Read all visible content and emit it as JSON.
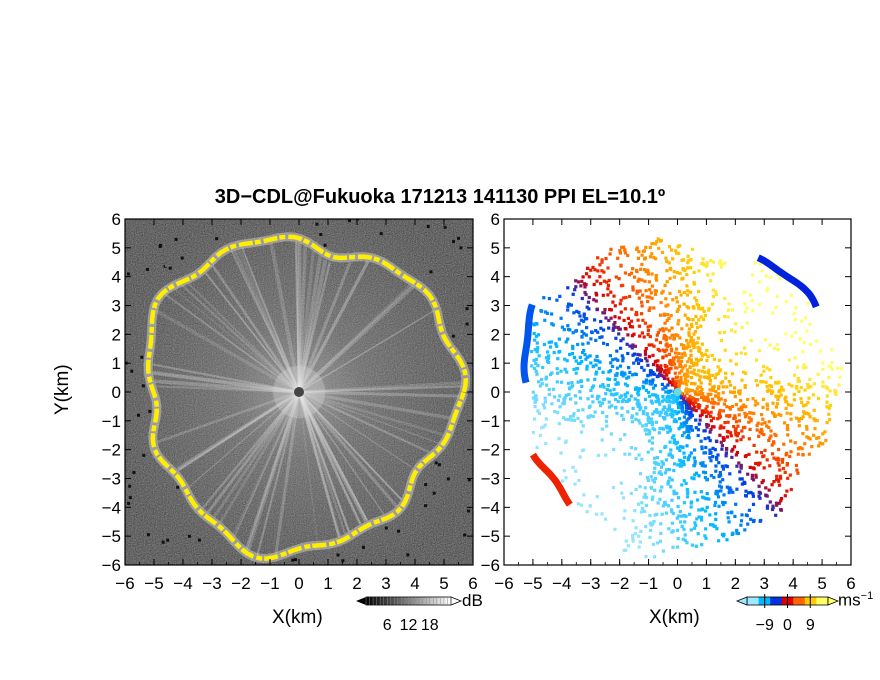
{
  "title": "3D−CDL@Fukuoka 171213 141130 PPI EL=10.1º",
  "panels": [
    {
      "id": "reflectivity",
      "xlabel": "X(km)",
      "ylabel": "Y(km)"
    },
    {
      "id": "velocity",
      "xlabel": "X(km)",
      "ylabel": ""
    }
  ],
  "colorbars": [
    {
      "unit": "dB",
      "ticks": [
        "6",
        "12",
        "18"
      ],
      "range": [
        0,
        24
      ],
      "colors": [
        "#000000",
        "#ffffff"
      ]
    },
    {
      "unit": "ms",
      "unit_superscript": "−1",
      "ticks": [
        "−9",
        "0",
        "9"
      ],
      "range": [
        -16,
        16
      ],
      "colors": [
        "#9fe8ff",
        "#00b8ff",
        "#0033dd",
        "#dd0000",
        "#ff6600",
        "#ffcc00",
        "#ffff66"
      ]
    }
  ],
  "chart_data": [
    {
      "type": "heatmap",
      "title": "3D−CDL@Fukuoka 171213 141130 PPI EL=10.1º",
      "xlabel": "X(km)",
      "ylabel": "Y(km)",
      "xlim": [
        -6,
        6
      ],
      "ylim": [
        -6,
        6
      ],
      "xticks": [
        -6,
        -5,
        -4,
        -3,
        -2,
        -1,
        0,
        1,
        2,
        3,
        4,
        5,
        6
      ],
      "yticks": [
        -6,
        -5,
        -4,
        -3,
        -2,
        -1,
        0,
        1,
        2,
        3,
        4,
        5,
        6
      ],
      "variable": "signal intensity",
      "colorbar": {
        "unit": "dB",
        "ticks": [
          6,
          12,
          18
        ]
      },
      "features": [
        "radial PPI scan, grey background noise",
        "bright radial streaks from origin",
        "yellow high-intensity ring near edge of coverage (~4.5–6 km)"
      ]
    },
    {
      "type": "heatmap",
      "xlabel": "X(km)",
      "ylabel": "",
      "xlim": [
        -6,
        6
      ],
      "ylim": [
        -6,
        6
      ],
      "xticks": [
        -6,
        -5,
        -4,
        -3,
        -2,
        -1,
        0,
        1,
        2,
        3,
        4,
        5,
        6
      ],
      "yticks": [
        -6,
        -5,
        -4,
        -3,
        -2,
        -1,
        0,
        1,
        2,
        3,
        4,
        5,
        6
      ],
      "variable": "Doppler velocity",
      "colorbar": {
        "unit": "ms−1",
        "ticks": [
          -9,
          0,
          9
        ]
      },
      "features": [
        "negative (blue/cyan) velocities in north-west sector",
        "positive (red/orange/yellow) velocities in south-east sector",
        "dark blue rim in north-east, red rim in south-west"
      ]
    }
  ]
}
